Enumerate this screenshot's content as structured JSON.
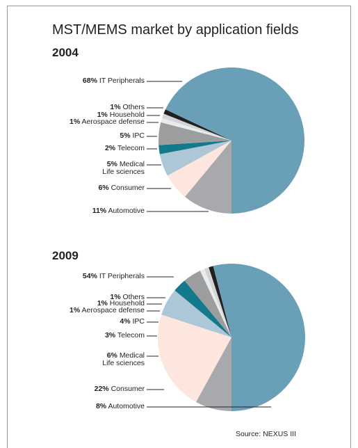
{
  "title": "MST/MEMS market by application fields",
  "source": "Source: NEXUS III",
  "chart_data": [
    {
      "type": "pie",
      "title": "2004",
      "categories": [
        "IT Peripherals",
        "Others",
        "Household",
        "Aerospace defense",
        "IPC",
        "Telecom",
        "Medical\nLife sciences",
        "Consumer",
        "Automotive"
      ],
      "values": [
        68,
        1,
        1,
        1,
        5,
        2,
        5,
        6,
        11
      ],
      "value_labels": [
        "68%",
        "1%",
        "1%",
        "1%",
        "5%",
        "2%",
        "5%",
        "6%",
        "11%"
      ],
      "colors": [
        "#6a9fb8",
        "#231f20",
        "#d2d5d7",
        "#e9ebec",
        "#9b9d9f",
        "#13798d",
        "#adc7d6",
        "#fde6dd",
        "#a7a9ac"
      ]
    },
    {
      "type": "pie",
      "title": "2009",
      "categories": [
        "IT Peripherals",
        "Others",
        "Household",
        "Aerospace defense",
        "IPC",
        "Telecom",
        "Medical\nLife sciences",
        "Consumer",
        "Automotive"
      ],
      "values": [
        54,
        1,
        1,
        1,
        4,
        3,
        6,
        22,
        8
      ],
      "value_labels": [
        "54%",
        "1%",
        "1%",
        "1%",
        "4%",
        "3%",
        "6%",
        "22%",
        "8%"
      ],
      "colors": [
        "#6a9fb8",
        "#231f20",
        "#d2d5d7",
        "#e9ebec",
        "#9b9d9f",
        "#13798d",
        "#adc7d6",
        "#fde6dd",
        "#a7a9ac"
      ]
    }
  ]
}
